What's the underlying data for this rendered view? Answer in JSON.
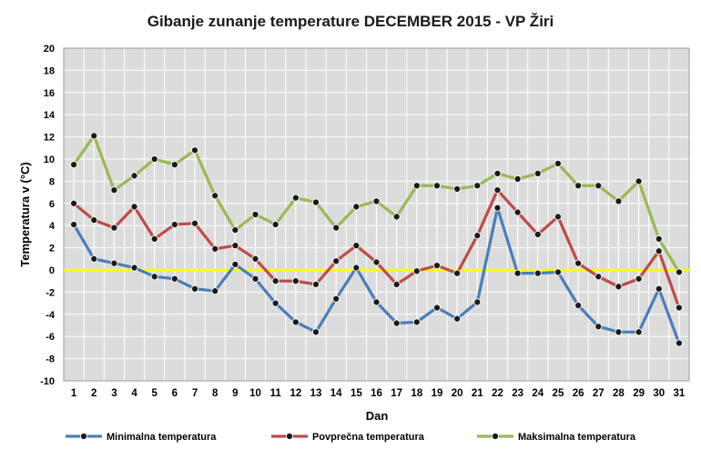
{
  "chart_data": {
    "type": "line",
    "title": "Gibanje zunanje temperature DECEMBER 2015 - VP Žiri",
    "xlabel": "Dan",
    "ylabel": "Temperatura v (°C)",
    "ylim": [
      -10,
      20
    ],
    "ytick_step": 2,
    "yticks": [
      "20",
      "18",
      "16",
      "14",
      "12",
      "10",
      "8",
      "6",
      "4",
      "2",
      "0",
      "-2",
      "-4",
      "-6",
      "-8",
      "-10"
    ],
    "categories": [
      "1",
      "2",
      "3",
      "4",
      "5",
      "6",
      "7",
      "8",
      "9",
      "10",
      "11",
      "12",
      "13",
      "14",
      "15",
      "16",
      "17",
      "18",
      "19",
      "20",
      "21",
      "22",
      "23",
      "24",
      "25",
      "26",
      "27",
      "28",
      "29",
      "30",
      "31"
    ],
    "zero_line_color": "#ffff00",
    "plot_background": "#dcdcdc",
    "series": [
      {
        "name": "Minimalna temperatura",
        "color": "#4a7ebb",
        "values": [
          4.1,
          1.0,
          0.6,
          0.2,
          -0.6,
          -0.8,
          -1.7,
          -1.9,
          0.5,
          -0.8,
          -3.0,
          -4.7,
          -5.6,
          -2.6,
          0.2,
          -2.9,
          -4.8,
          -4.7,
          -3.4,
          -4.4,
          -2.9,
          5.6,
          -0.3,
          -0.3,
          -0.2,
          -3.2,
          -5.1,
          -5.6,
          -5.6,
          -1.7,
          -6.6
        ]
      },
      {
        "name": "Povprečna temperatura",
        "color": "#be4b48",
        "values": [
          6.0,
          4.5,
          3.8,
          5.7,
          2.8,
          4.1,
          4.2,
          1.9,
          2.2,
          1.0,
          -1.0,
          -1.0,
          -1.3,
          0.8,
          2.2,
          0.7,
          -1.3,
          -0.1,
          0.4,
          -0.3,
          3.1,
          7.2,
          5.2,
          3.2,
          4.8,
          0.6,
          -0.6,
          -1.5,
          -0.8,
          1.7,
          -3.4
        ]
      },
      {
        "name": "Maksimalna temperatura",
        "color": "#98b954",
        "values": [
          9.5,
          12.1,
          7.2,
          8.5,
          10.0,
          9.5,
          10.8,
          6.7,
          3.6,
          5.0,
          4.1,
          6.5,
          6.1,
          3.8,
          5.7,
          6.2,
          4.8,
          7.6,
          7.6,
          7.3,
          7.6,
          8.7,
          8.2,
          8.7,
          9.6,
          7.6,
          7.6,
          6.2,
          8.0,
          2.8,
          -0.2
        ]
      }
    ],
    "legend_position": "bottom"
  }
}
